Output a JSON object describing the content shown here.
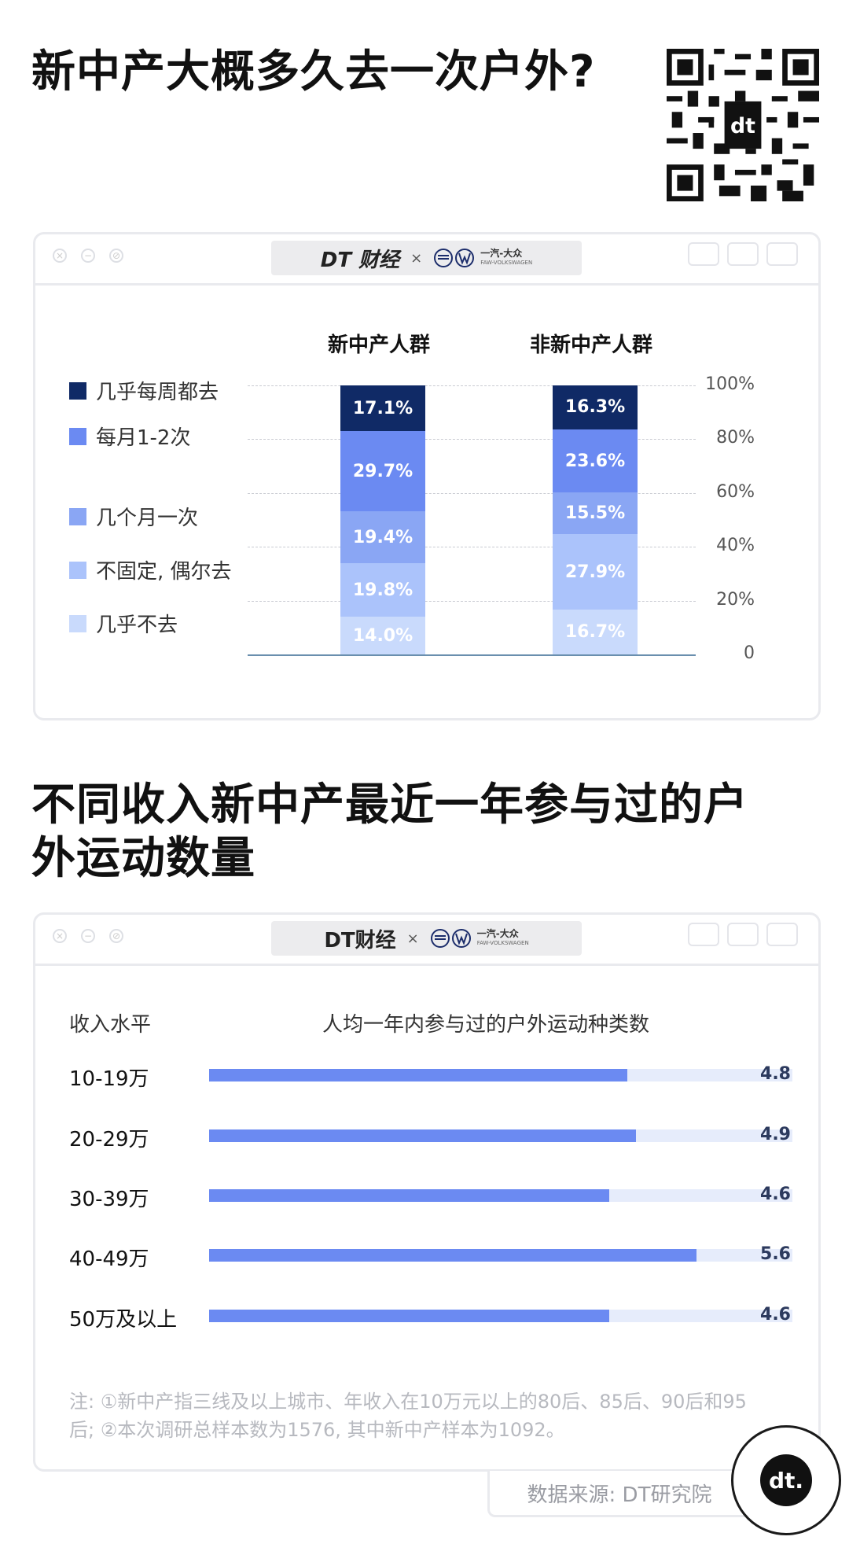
{
  "section1_title": "新中产大概多久去一次户外?",
  "section2_title": "不同收入新中产最近一年参与过的户外运动数量",
  "brand": {
    "dt": "DT财经",
    "dt_alt": "DT 财经",
    "x": "×",
    "partner": "一汽-大众",
    "partner_sub": "FAW-VOLKSWAGEN"
  },
  "chart_data": [
    {
      "type": "bar",
      "stacked": true,
      "categories": [
        "新中产人群",
        "非新中产人群"
      ],
      "series": [
        {
          "name": "几乎不去",
          "values": [
            14.0,
            16.7
          ],
          "color": "#c9dafc",
          "labels": [
            "14.0%",
            "16.7%"
          ]
        },
        {
          "name": "不固定, 偶尔去",
          "values": [
            19.8,
            27.9
          ],
          "color": "#abc3fb",
          "labels": [
            "19.8%",
            "27.9%"
          ]
        },
        {
          "name": "几个月一次",
          "values": [
            19.4,
            15.5
          ],
          "color": "#8aa6f4",
          "labels": [
            "19.4%",
            "15.5%"
          ]
        },
        {
          "name": "每月1-2次",
          "values": [
            29.7,
            23.6
          ],
          "color": "#6b8af2",
          "labels": [
            "29.7%",
            "23.6%"
          ]
        },
        {
          "name": "几乎每周都去",
          "values": [
            17.1,
            16.3
          ],
          "color": "#102a66",
          "labels": [
            "17.1%",
            "16.3%"
          ]
        }
      ],
      "legend_order": [
        "几乎每周都去",
        "每月1-2次",
        "几个月一次",
        "不固定, 偶尔去",
        "几乎不去"
      ],
      "ylim": [
        0,
        100
      ],
      "yticks": [
        "100%",
        "80%",
        "60%",
        "40%",
        "20%",
        "0"
      ],
      "grid": true,
      "legend": "left"
    },
    {
      "type": "bar",
      "orientation": "horizontal",
      "xlabel_left": "收入水平",
      "title": "人均一年内参与过的户外运动种类数",
      "categories": [
        "10-19万",
        "20-29万",
        "30-39万",
        "40-49万",
        "50万及以上"
      ],
      "values": [
        4.8,
        4.9,
        4.6,
        5.6,
        4.6
      ],
      "value_labels": [
        "4.8",
        "4.9",
        "4.6",
        "5.6",
        "4.6"
      ],
      "xlim": [
        0,
        6.7
      ],
      "bar_color": "#6b8af2",
      "track_color": "#e6ecfb"
    }
  ],
  "note": "注: ①新中产指三线及以上城市、年收入在10万元以上的80后、85后、90后和95后; ②本次调研总样本数为1576, 其中新中产样本为1092。",
  "source": "数据来源: DT研究院",
  "badge": "dt."
}
